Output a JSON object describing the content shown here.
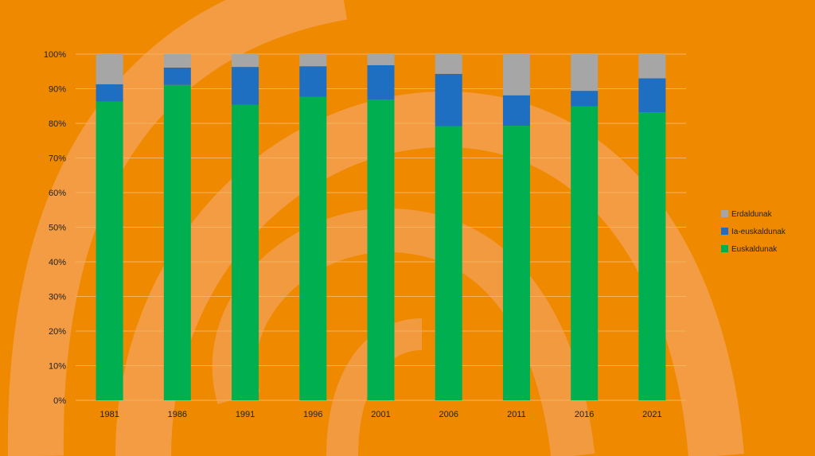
{
  "colors": {
    "background": "#ef8a00",
    "swirl": "#f4a15a",
    "grid": "#f6b25f",
    "erdaldunak": "#a6a6a6",
    "ia_euskaldunak": "#1e6fc1",
    "euskaldunak": "#00b050"
  },
  "chart_data": {
    "type": "bar",
    "stacked": true,
    "percent_axis": true,
    "categories": [
      "1981",
      "1986",
      "1991",
      "1996",
      "2001",
      "2006",
      "2011",
      "2016",
      "2021"
    ],
    "series": [
      {
        "name": "Euskaldunak",
        "color": "#00b050",
        "values": [
          86.3,
          91.1,
          85.4,
          87.7,
          86.9,
          79.2,
          79.3,
          84.9,
          83.2
        ]
      },
      {
        "name": "Ia-euskaldunak",
        "color": "#1e6fc1",
        "values": [
          5.0,
          5.0,
          10.9,
          8.8,
          9.9,
          15.1,
          8.8,
          4.5,
          9.8
        ]
      },
      {
        "name": "Erdaldunak",
        "color": "#a6a6a6",
        "values": [
          8.7,
          3.9,
          3.7,
          3.5,
          3.2,
          5.7,
          11.9,
          10.6,
          7.0
        ]
      }
    ],
    "legend_order": [
      "Erdaldunak",
      "Ia-euskaldunak",
      "Euskaldunak"
    ],
    "ylim": [
      0,
      100
    ],
    "yticks": [
      "0%",
      "10%",
      "20%",
      "30%",
      "40%",
      "50%",
      "60%",
      "70%",
      "80%",
      "90%",
      "100%"
    ],
    "grid": true,
    "legend_position": "right",
    "title": "",
    "xlabel": "",
    "ylabel": ""
  }
}
